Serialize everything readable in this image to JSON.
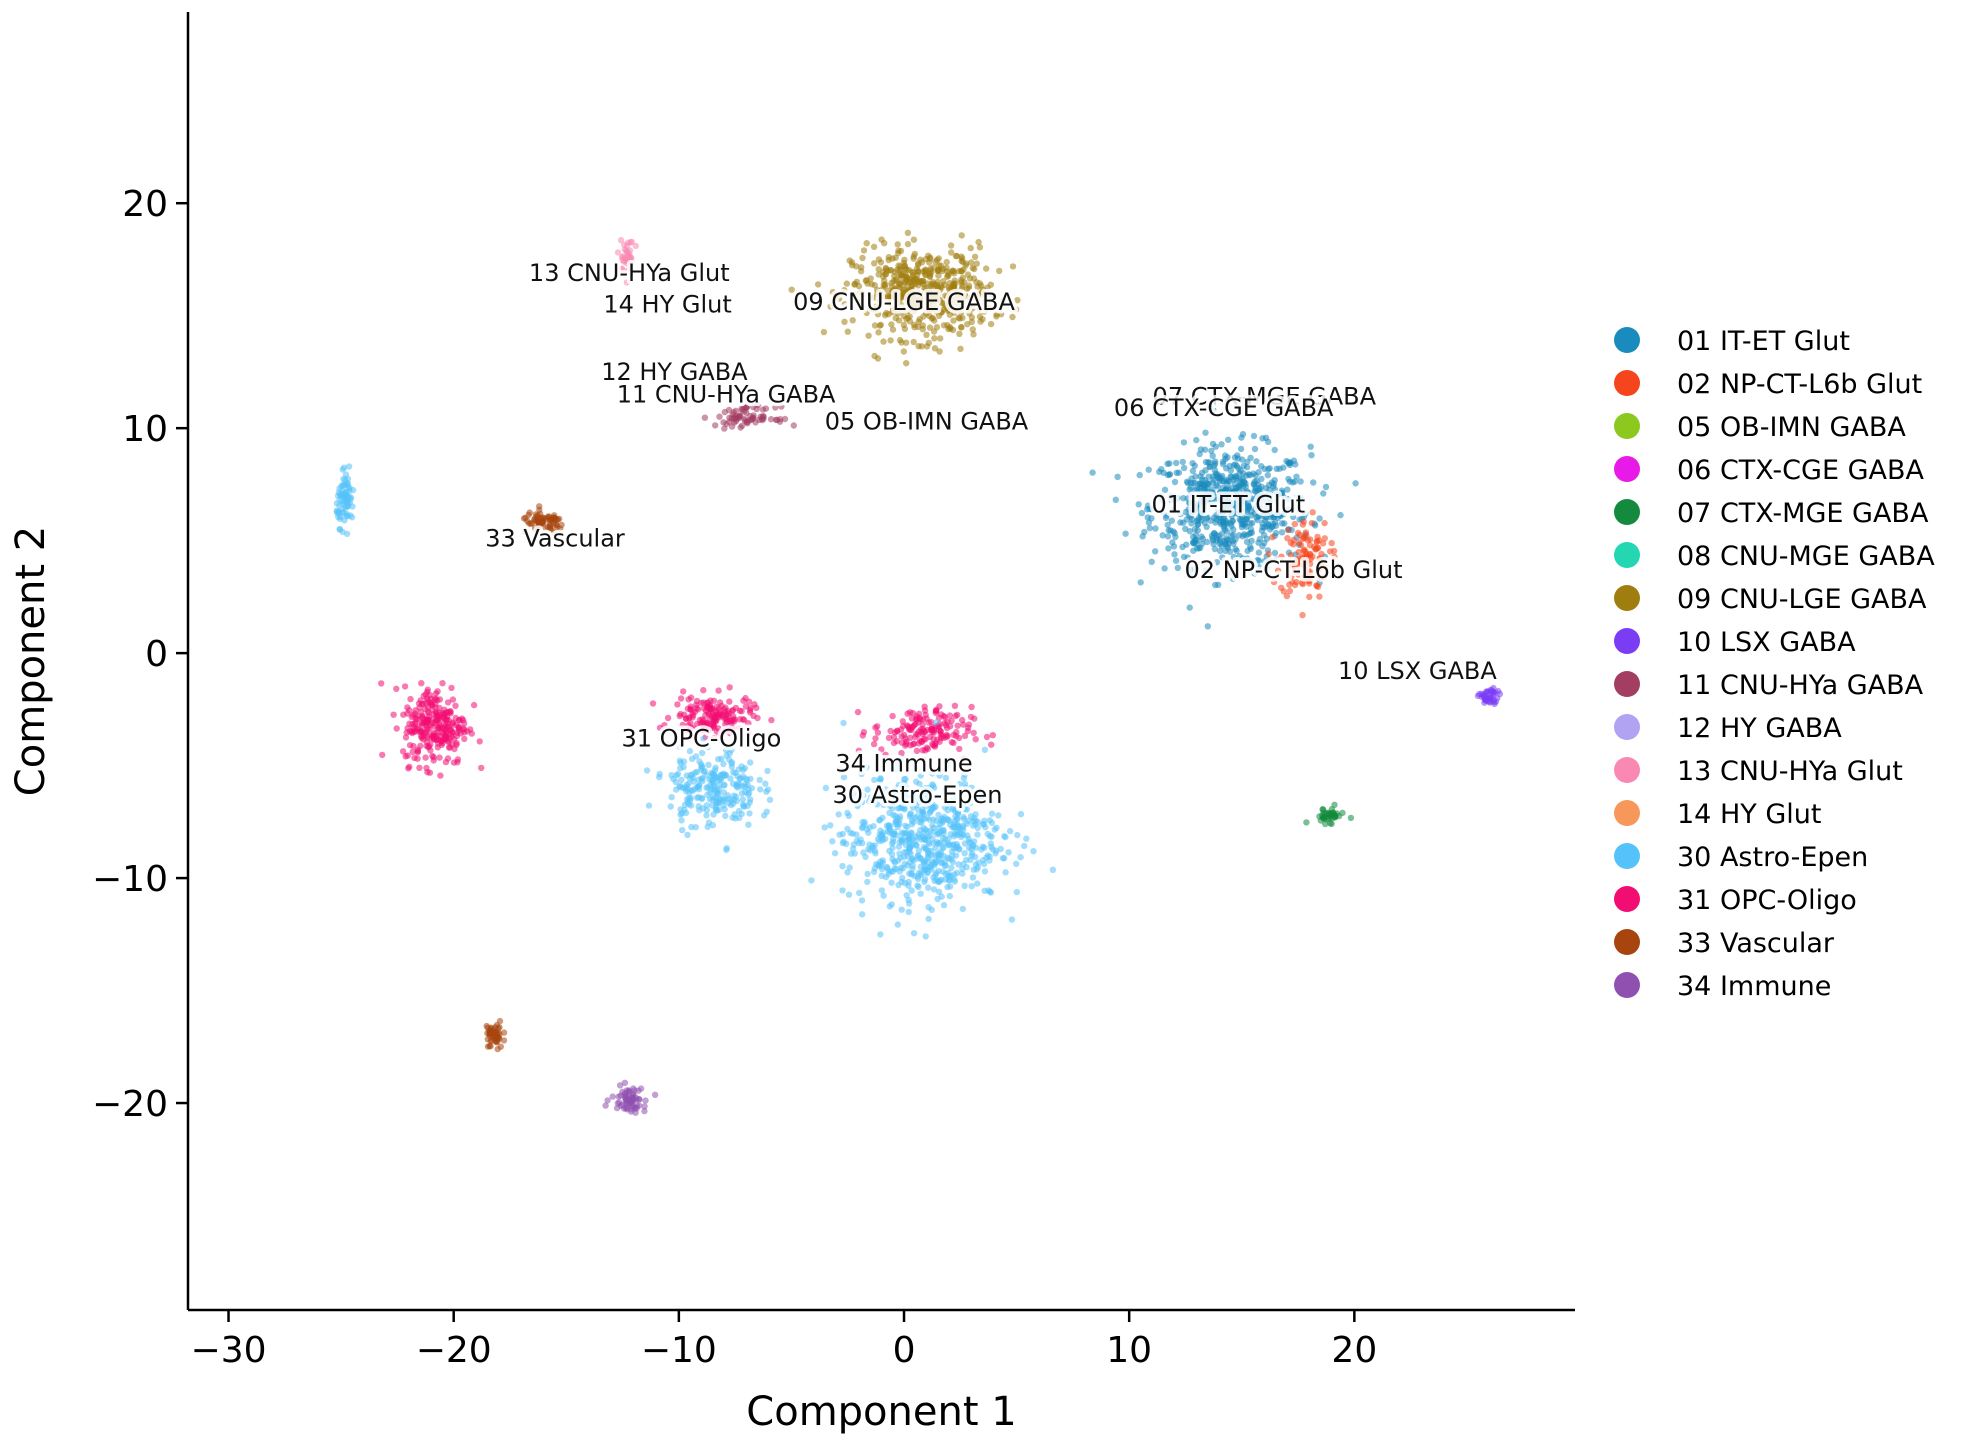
{
  "chart_data": {
    "type": "scatter",
    "xlabel": "Component 1",
    "ylabel": "Component 2",
    "xlim": [
      -31.8,
      29.8
    ],
    "ylim": [
      -29.2,
      28.5
    ],
    "xticks": [
      -30,
      -20,
      -10,
      0,
      10,
      20
    ],
    "xtick_labels": [
      "−30",
      "−20",
      "−10",
      "0",
      "10",
      "20"
    ],
    "yticks": [
      -20,
      -10,
      0,
      10,
      20
    ],
    "ytick_labels": [
      "−20",
      "−10",
      "0",
      "10",
      "20"
    ],
    "grid": false,
    "legend_position": "right",
    "legend": [
      {
        "name": "01 IT-ET Glut",
        "color": "#1a8bbd"
      },
      {
        "name": "02 NP-CT-L6b Glut",
        "color": "#f5451d"
      },
      {
        "name": "05 OB-IMN GABA",
        "color": "#8cc81e"
      },
      {
        "name": "06 CTX-CGE GABA",
        "color": "#e81ae8"
      },
      {
        "name": "07 CTX-MGE GABA",
        "color": "#138a3d"
      },
      {
        "name": "08 CNU-MGE GABA",
        "color": "#24d6b1"
      },
      {
        "name": "09 CNU-LGE GABA",
        "color": "#a07d0f"
      },
      {
        "name": "10 LSX GABA",
        "color": "#7a3cf5"
      },
      {
        "name": "11 CNU-HYa GABA",
        "color": "#a33d62"
      },
      {
        "name": "12 HY GABA",
        "color": "#b1a2f2"
      },
      {
        "name": "13 CNU-HYa Glut",
        "color": "#f989b3"
      },
      {
        "name": "14 HY Glut",
        "color": "#f7985a"
      },
      {
        "name": "30 Astro-Epen",
        "color": "#56c2fa"
      },
      {
        "name": "31 OPC-Oligo",
        "color": "#f20d72"
      },
      {
        "name": "33 Vascular",
        "color": "#a8450f"
      },
      {
        "name": "34 Immune",
        "color": "#8f50b0"
      }
    ],
    "annotations": [
      {
        "text": "09 CNU-LGE GABA",
        "x": 0.0,
        "y": 15.6
      },
      {
        "text": "13 CNU-HYa Glut",
        "x": -12.2,
        "y": 16.9
      },
      {
        "text": "14 HY Glut",
        "x": -10.5,
        "y": 15.5
      },
      {
        "text": "12 HY GABA",
        "x": -10.2,
        "y": 12.5
      },
      {
        "text": "11 CNU-HYa GABA",
        "x": -7.9,
        "y": 11.5
      },
      {
        "text": "05 OB-IMN GABA",
        "x": 1.0,
        "y": 10.3
      },
      {
        "text": "07 CTX-MGE GABA",
        "x": 16.0,
        "y": 11.4
      },
      {
        "text": "06 CTX-CGE GABA",
        "x": 14.2,
        "y": 10.9
      },
      {
        "text": "01 IT-ET Glut",
        "x": 14.4,
        "y": 6.6
      },
      {
        "text": "02 NP-CT-L6b Glut",
        "x": 17.3,
        "y": 3.7
      },
      {
        "text": "33 Vascular",
        "x": -15.5,
        "y": 5.1
      },
      {
        "text": "10 LSX GABA",
        "x": 22.8,
        "y": -0.8
      },
      {
        "text": "31 OPC-Oligo",
        "x": -9.0,
        "y": -3.8
      },
      {
        "text": "34 Immune",
        "x": 0.0,
        "y": -4.9
      },
      {
        "text": "30 Astro-Epen",
        "x": 0.6,
        "y": -6.3
      }
    ],
    "clusters": [
      {
        "label": "01 IT-ET Glut",
        "x": 14.5,
        "y": 6.5,
        "sx": 3.2,
        "sy": 2.4,
        "n": 650
      },
      {
        "label": "02 NP-CT-L6b Glut",
        "x": 17.8,
        "y": 4.2,
        "sx": 1.0,
        "sy": 1.6,
        "n": 120
      },
      {
        "label": "09 CNU-LGE GABA",
        "x": 0.8,
        "y": 16.0,
        "sx": 2.8,
        "sy": 1.8,
        "n": 520
      },
      {
        "label": "31 OPC-Oligo",
        "x": -8.5,
        "y": -2.8,
        "sx": 1.6,
        "sy": 0.8,
        "n": 160
      },
      {
        "label": "31 OPC-Oligo",
        "x": 0.8,
        "y": -3.5,
        "sx": 2.0,
        "sy": 1.0,
        "n": 160
      },
      {
        "label": "31 OPC-Oligo",
        "x": -20.8,
        "y": -3.2,
        "sx": 1.3,
        "sy": 1.6,
        "n": 260
      },
      {
        "label": "30 Astro-Epen",
        "x": 0.8,
        "y": -8.2,
        "sx": 3.2,
        "sy": 2.6,
        "n": 650
      },
      {
        "label": "30 Astro-Epen",
        "x": -8.5,
        "y": -6.0,
        "sx": 1.8,
        "sy": 1.6,
        "n": 240
      },
      {
        "label": "30 Astro-Epen",
        "x": -24.8,
        "y": 6.8,
        "sx": 0.35,
        "sy": 1.0,
        "n": 80
      },
      {
        "label": "33 Vascular",
        "x": -16.0,
        "y": 5.8,
        "sx": 0.9,
        "sy": 0.4,
        "n": 70
      },
      {
        "label": "33 Vascular",
        "x": -18.2,
        "y": -17.0,
        "sx": 0.35,
        "sy": 0.6,
        "n": 50
      },
      {
        "label": "34 Immune",
        "x": -12.2,
        "y": -19.8,
        "sx": 0.7,
        "sy": 0.5,
        "n": 70
      },
      {
        "label": "11 CNU-HYa GABA",
        "x": -7.0,
        "y": 10.5,
        "sx": 1.2,
        "sy": 0.4,
        "n": 70
      },
      {
        "label": "13 CNU-HYa Glut",
        "x": -12.3,
        "y": 17.5,
        "sx": 0.3,
        "sy": 0.8,
        "n": 40
      },
      {
        "label": "07 CTX-MGE GABA",
        "x": 18.8,
        "y": -7.2,
        "sx": 0.7,
        "sy": 0.3,
        "n": 40
      },
      {
        "label": "10 LSX GABA",
        "x": 26.0,
        "y": -2.0,
        "sx": 0.4,
        "sy": 0.4,
        "n": 40
      }
    ]
  }
}
